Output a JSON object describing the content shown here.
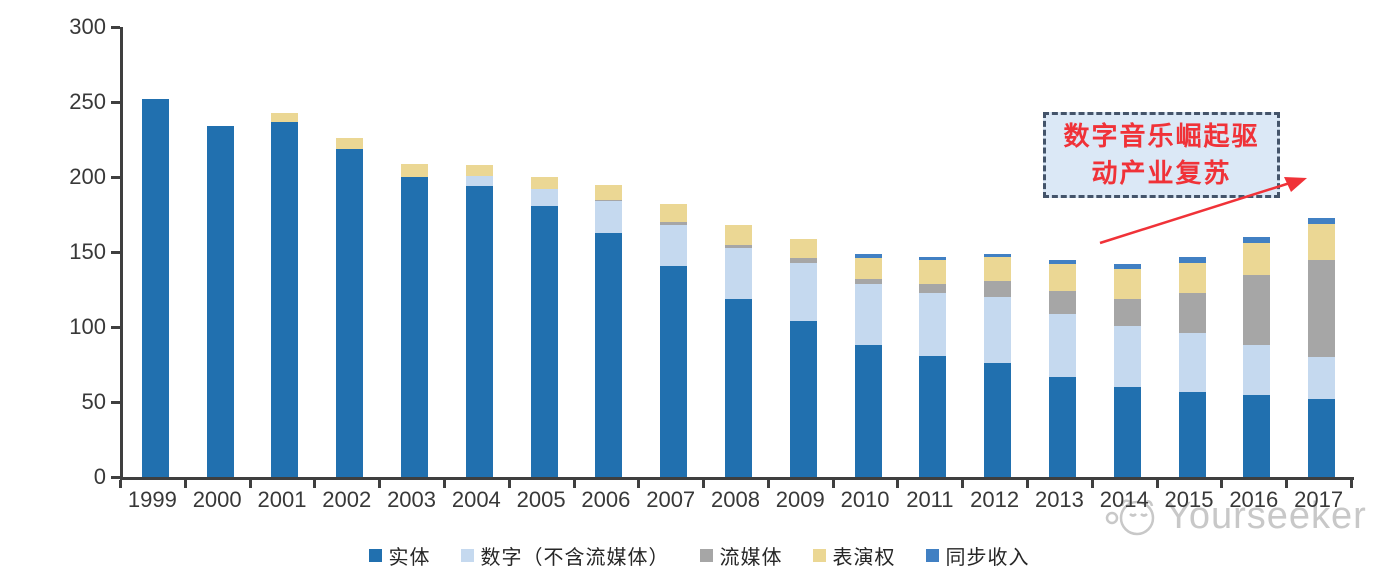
{
  "theme": {
    "axis_color": "#3F3F3F",
    "tick_label_color": "#383838",
    "annotation_red": "#F03238",
    "annotation_border": "#44546A",
    "annotation_fill": "#DBE8F6",
    "watermark_gray": "#C8C8C8"
  },
  "chart_data": {
    "type": "bar",
    "stacked": true,
    "title": "",
    "xlabel": "",
    "ylabel": "",
    "ylim": [
      0,
      300
    ],
    "yticks": [
      0,
      50,
      100,
      150,
      200,
      250,
      300
    ],
    "grid": false,
    "legend_position": "bottom",
    "categories": [
      "1999",
      "2000",
      "2001",
      "2002",
      "2003",
      "2004",
      "2005",
      "2006",
      "2007",
      "2008",
      "2009",
      "2010",
      "2011",
      "2012",
      "2013",
      "2014",
      "2015",
      "2016",
      "2017"
    ],
    "series": [
      {
        "name": "实体",
        "color": "#2170AF",
        "values": [
          252,
          234,
          237,
          219,
          200,
          194,
          181,
          163,
          141,
          119,
          104,
          88,
          81,
          76,
          67,
          60,
          57,
          55,
          52
        ]
      },
      {
        "name": "数字（不含流媒体）",
        "color": "#C5D9EF",
        "values": [
          0,
          0,
          0,
          0,
          0,
          7,
          11,
          21,
          27,
          34,
          39,
          41,
          42,
          44,
          42,
          41,
          39,
          33,
          28
        ]
      },
      {
        "name": "流媒体",
        "color": "#A6A6A6",
        "values": [
          0,
          0,
          0,
          0,
          0,
          0,
          0,
          1,
          2,
          2,
          3,
          3,
          6,
          11,
          15,
          18,
          27,
          47,
          65
        ]
      },
      {
        "name": "表演权",
        "color": "#EBD794",
        "values": [
          0,
          0,
          6,
          7,
          9,
          7,
          8,
          10,
          12,
          13,
          13,
          14,
          16,
          16,
          18,
          20,
          20,
          21,
          24
        ]
      },
      {
        "name": "同步收入",
        "color": "#4180C3",
        "values": [
          0,
          0,
          0,
          0,
          0,
          0,
          0,
          0,
          0,
          0,
          0,
          3,
          2,
          2,
          3,
          3,
          4,
          4,
          4
        ]
      }
    ],
    "totals": [
      252,
      234,
      243,
      226,
      209,
      208,
      200,
      195,
      182,
      168,
      159,
      149,
      147,
      149,
      145,
      142,
      147,
      160,
      173
    ]
  },
  "annotation": {
    "lines": [
      "数字音乐崛起驱",
      "动产业复苏"
    ],
    "full_text": "数字音乐崛起驱动产业复苏"
  },
  "watermark": {
    "text": "Yourseeker",
    "logo": "cat-face-icon"
  }
}
